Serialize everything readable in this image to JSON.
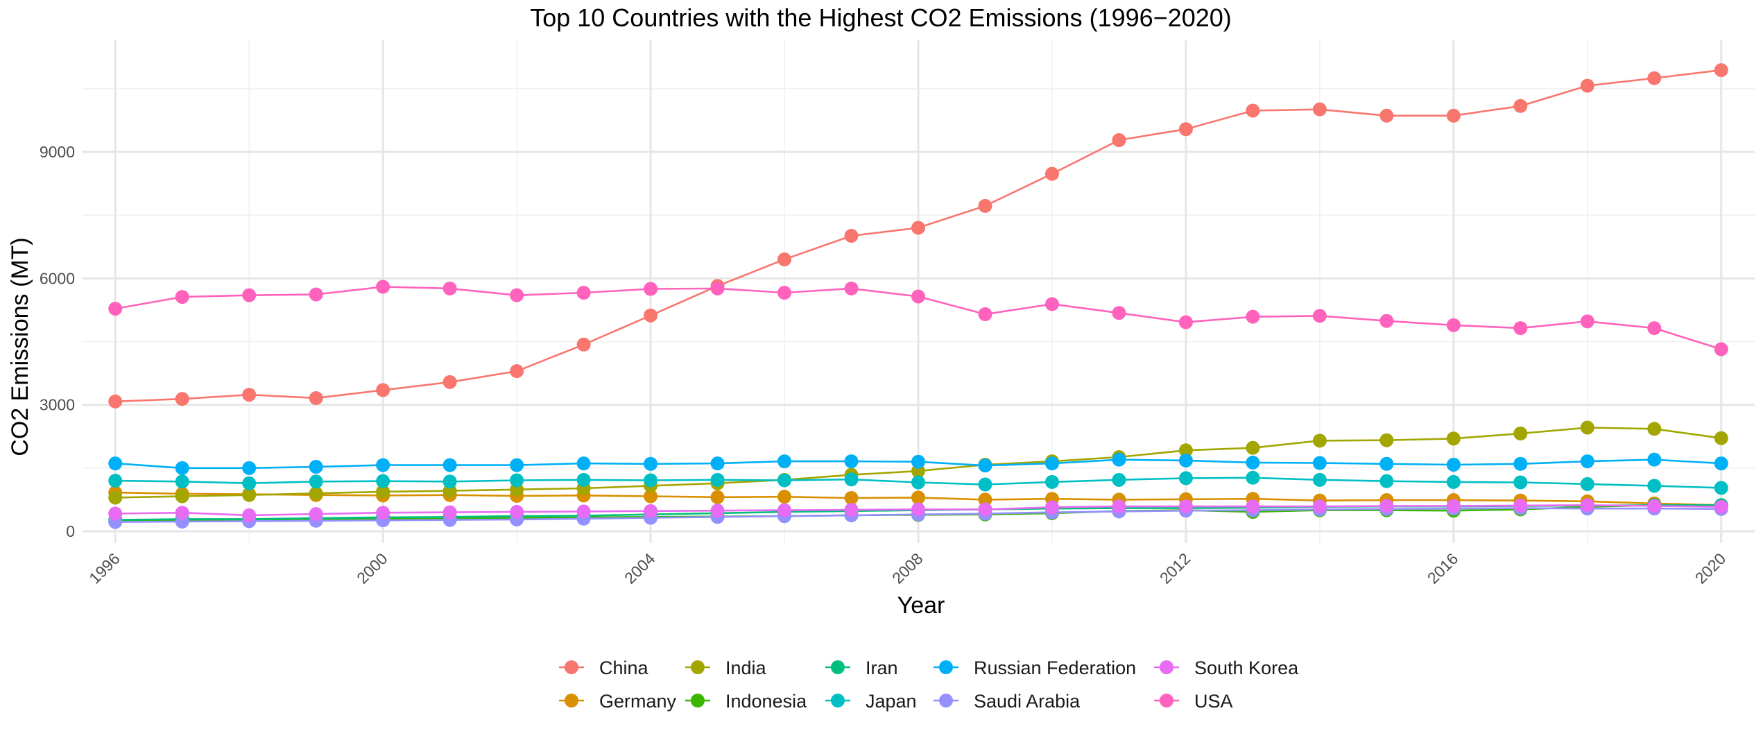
{
  "chart_data": {
    "type": "line",
    "title": "Top 10 Countries with the Highest CO2 Emissions (1996−2020)",
    "xlabel": "Year",
    "ylabel": "CO2 Emissions (MT)",
    "xlim": [
      1995.5,
      2020.5
    ],
    "ylim": [
      -280,
      11650
    ],
    "x_ticks": [
      1996,
      2000,
      2004,
      2008,
      2012,
      2016,
      2020
    ],
    "y_ticks": [
      0,
      3000,
      6000,
      9000
    ],
    "grid": true,
    "legend_position": "bottom",
    "x": [
      1996,
      1997,
      1998,
      1999,
      2000,
      2001,
      2002,
      2003,
      2004,
      2005,
      2006,
      2007,
      2008,
      2009,
      2010,
      2011,
      2012,
      2013,
      2014,
      2015,
      2016,
      2017,
      2018,
      2019,
      2020
    ],
    "series": [
      {
        "name": "China",
        "color": "#F8766D",
        "values": [
          3080,
          3140,
          3240,
          3160,
          3350,
          3540,
          3800,
          4430,
          5120,
          5820,
          6450,
          7010,
          7200,
          7720,
          8480,
          9280,
          9540,
          9980,
          10010,
          9860,
          9860,
          10090,
          10570,
          10750,
          10940
        ]
      },
      {
        "name": "Germany",
        "color": "#D89000",
        "values": [
          920,
          890,
          880,
          860,
          850,
          860,
          840,
          850,
          830,
          810,
          820,
          790,
          800,
          750,
          770,
          750,
          760,
          770,
          730,
          740,
          740,
          730,
          710,
          660,
          620
        ]
      },
      {
        "name": "India",
        "color": "#A3A500",
        "values": [
          800,
          830,
          860,
          900,
          940,
          960,
          990,
          1020,
          1080,
          1140,
          1220,
          1340,
          1430,
          1580,
          1660,
          1760,
          1920,
          1980,
          2150,
          2160,
          2200,
          2320,
          2460,
          2430,
          2210
        ]
      },
      {
        "name": "Indonesia",
        "color": "#39B600",
        "values": [
          250,
          270,
          260,
          280,
          290,
          300,
          320,
          330,
          340,
          350,
          360,
          380,
          390,
          400,
          430,
          480,
          500,
          460,
          500,
          500,
          490,
          520,
          580,
          620,
          590
        ]
      },
      {
        "name": "Iran",
        "color": "#00BF7D",
        "values": [
          270,
          290,
          290,
          310,
          330,
          340,
          360,
          370,
          400,
          430,
          460,
          480,
          500,
          520,
          540,
          550,
          550,
          560,
          580,
          590,
          590,
          600,
          610,
          620,
          620
        ]
      },
      {
        "name": "Japan",
        "color": "#00BFC4",
        "values": [
          1200,
          1180,
          1140,
          1180,
          1190,
          1180,
          1210,
          1220,
          1210,
          1220,
          1210,
          1230,
          1160,
          1110,
          1170,
          1220,
          1260,
          1270,
          1220,
          1190,
          1170,
          1160,
          1120,
          1080,
          1030
        ]
      },
      {
        "name": "Russian Federation",
        "color": "#00B0F6",
        "values": [
          1610,
          1500,
          1500,
          1530,
          1570,
          1570,
          1570,
          1610,
          1600,
          1610,
          1660,
          1660,
          1650,
          1560,
          1610,
          1700,
          1680,
          1630,
          1620,
          1600,
          1580,
          1600,
          1660,
          1700,
          1610
        ]
      },
      {
        "name": "Saudi Arabia",
        "color": "#9590FF",
        "values": [
          220,
          230,
          240,
          250,
          260,
          270,
          280,
          300,
          320,
          340,
          360,
          380,
          400,
          420,
          450,
          470,
          490,
          500,
          520,
          530,
          540,
          550,
          540,
          540,
          530
        ]
      },
      {
        "name": "South Korea",
        "color": "#E76BF3",
        "values": [
          420,
          440,
          380,
          410,
          440,
          450,
          460,
          470,
          480,
          490,
          500,
          510,
          520,
          520,
          570,
          590,
          590,
          590,
          590,
          600,
          600,
          610,
          620,
          600,
          580
        ]
      },
      {
        "name": "USA",
        "color": "#FF62BC",
        "values": [
          5280,
          5560,
          5600,
          5620,
          5800,
          5760,
          5600,
          5660,
          5750,
          5760,
          5660,
          5760,
          5570,
          5150,
          5390,
          5180,
          4960,
          5090,
          5110,
          4990,
          4890,
          4820,
          4980,
          4820,
          4320
        ]
      }
    ]
  }
}
